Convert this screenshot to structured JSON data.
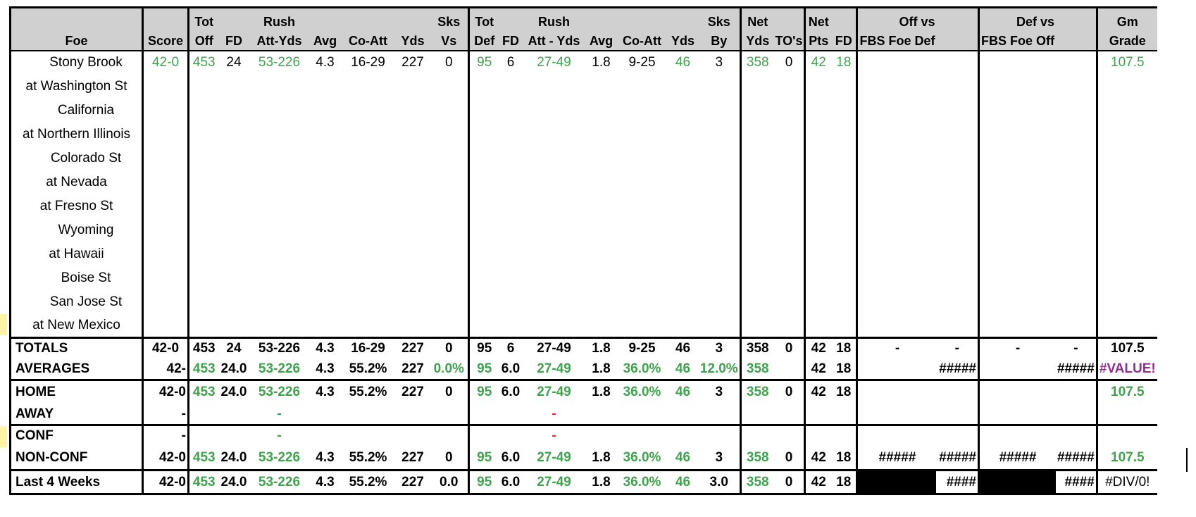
{
  "header": {
    "row1": [
      "",
      "",
      "Tot",
      "",
      "Rush",
      "",
      "",
      "",
      "Sks",
      "Tot",
      "",
      "Rush",
      "",
      "",
      "",
      "Sks",
      "Net",
      "",
      "Net",
      "",
      "Off vs",
      "",
      "Def vs",
      "",
      "Gm"
    ],
    "row2": [
      "Foe",
      "Score",
      "Off",
      "FD",
      "Att-Yds",
      "Avg",
      "Co-Att",
      "Yds",
      "Vs",
      "Def",
      "FD",
      "Att - Yds",
      "Avg",
      "Co-Att",
      "Yds",
      "By",
      "Yds",
      "TO's",
      "Pts",
      "FD",
      "FBS Foe Def",
      "",
      "FBS Foe Off",
      "",
      "Grade"
    ]
  },
  "games": [
    {
      "foe": "Stony Brook",
      "home": true,
      "score": "42-0",
      "tot_off": "453",
      "fd": "24",
      "rush": "53-226",
      "avg": "4.3",
      "co_att": "16-29",
      "yds": "227",
      "sks_vs": "0",
      "tot_def": "95",
      "dfd": "6",
      "drush": "27-49",
      "davg": "1.8",
      "dco_att": "9-25",
      "dyds": "46",
      "sks_by": "3",
      "net_yds": "358",
      "tos": "0",
      "net_pts": "42",
      "net_fd": "18",
      "grade": "107.5"
    },
    {
      "foe": "at Washington St",
      "home": false
    },
    {
      "foe": "California",
      "home": true
    },
    {
      "foe": "at Northern Illinois",
      "home": false
    },
    {
      "foe": "Colorado St",
      "home": true
    },
    {
      "foe": "at Nevada",
      "home": false
    },
    {
      "foe": "at Fresno St",
      "home": false
    },
    {
      "foe": "Wyoming",
      "home": true
    },
    {
      "foe": "at Hawaii",
      "home": false
    },
    {
      "foe": "Boise St",
      "home": true
    },
    {
      "foe": "San Jose St",
      "home": true
    },
    {
      "foe": "at New Mexico",
      "home": false
    }
  ],
  "summary": {
    "totals": {
      "label": "TOTALS",
      "score": "42-0",
      "tot_off": "453",
      "fd": "24",
      "rush": "53-226",
      "avg": "4.3",
      "co_att": "16-29",
      "yds": "227",
      "sks_vs": "0",
      "tot_def": "95",
      "dfd": "6",
      "drush": "27-49",
      "davg": "1.8",
      "dco_att": "9-25",
      "dyds": "46",
      "sks_by": "3",
      "net_yds": "358",
      "tos": "0",
      "net_pts": "42",
      "net_fd": "18",
      "off1": "-",
      "off2": "-",
      "def1": "-",
      "def2": "-",
      "grade": "107.5"
    },
    "averages": {
      "label": "AVERAGES",
      "score": "42-",
      "tot_off": "453",
      "fd": "24.0",
      "rush": "53-226",
      "avg": "4.3",
      "co_att": "55.2%",
      "yds": "227",
      "sks_vs": "0.0%",
      "tot_def": "95",
      "dfd": "6.0",
      "drush": "27-49",
      "davg": "1.8",
      "dco_att": "36.0%",
      "dyds": "46",
      "sks_by": "12.0%",
      "net_yds": "358",
      "net_pts": "42",
      "net_fd": "18",
      "off2": "#####",
      "def2": "#####",
      "grade": "#VALUE!"
    },
    "home": {
      "label": "HOME",
      "score": "42-0",
      "tot_off": "453",
      "fd": "24.0",
      "rush": "53-226",
      "avg": "4.3",
      "co_att": "55.2%",
      "yds": "227",
      "sks_vs": "0",
      "tot_def": "95",
      "dfd": "6.0",
      "drush": "27-49",
      "davg": "1.8",
      "dco_att": "36.0%",
      "dyds": "46",
      "sks_by": "3",
      "net_yds": "358",
      "tos": "0",
      "net_pts": "42",
      "net_fd": "18",
      "grade": "107.5"
    },
    "away": {
      "label": "AWAY",
      "score": "-",
      "rush": "-",
      "drush": "-"
    },
    "conf": {
      "label": "CONF",
      "score": "-",
      "rush": "-",
      "drush": "-"
    },
    "nonconf": {
      "label": "NON-CONF",
      "score": "42-0",
      "tot_off": "453",
      "fd": "24.0",
      "rush": "53-226",
      "avg": "4.3",
      "co_att": "55.2%",
      "yds": "227",
      "sks_vs": "0",
      "tot_def": "95",
      "dfd": "6.0",
      "drush": "27-49",
      "davg": "1.8",
      "dco_att": "36.0%",
      "dyds": "46",
      "sks_by": "3",
      "net_yds": "358",
      "tos": "0",
      "net_pts": "42",
      "net_fd": "18",
      "off1": "#####",
      "off2": "#####",
      "def1": "#####",
      "def2": "#####",
      "grade": "107.5"
    },
    "last4": {
      "label": "Last 4 Weeks",
      "score": "42-0",
      "tot_off": "453",
      "fd": "24.0",
      "rush": "53-226",
      "avg": "4.3",
      "co_att": "55.2%",
      "yds": "227",
      "sks_vs": "0.0",
      "tot_def": "95",
      "dfd": "6.0",
      "drush": "27-49",
      "davg": "1.8",
      "dco_att": "36.0%",
      "dyds": "46",
      "sks_by": "3.0",
      "net_yds": "358",
      "tos": "0",
      "net_pts": "42",
      "net_fd": "18",
      "off2": "####",
      "def2": "####",
      "grade": "#DIV/0!"
    }
  },
  "colors": {
    "header_bg": "#d0d0d0",
    "positive": "#3fa34d",
    "negative": "#d9302c",
    "error": "#8e2f8f",
    "highlight": "#fff3a6"
  }
}
